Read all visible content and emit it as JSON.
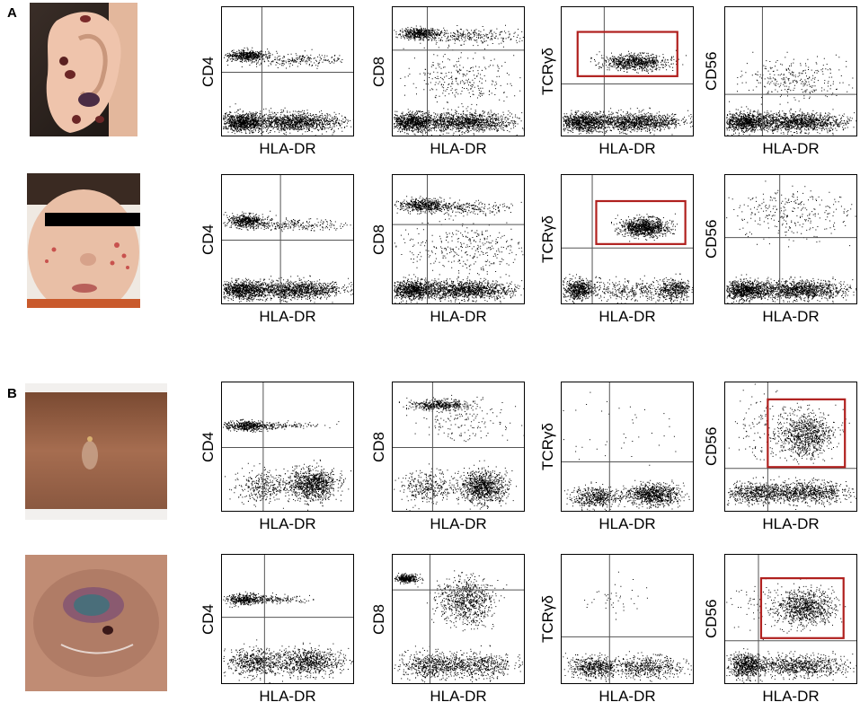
{
  "panel_labels": [
    "A",
    "B"
  ],
  "x_axis_label": "HLA-DR",
  "rows": [
    {
      "y_labels": [
        "CD4",
        "CD8",
        "TCRγδ",
        "CD56"
      ],
      "gated_plot": "TCRγδ",
      "photo": "ear-lesion"
    },
    {
      "y_labels": [
        "CD4",
        "CD8",
        "TCRγδ",
        "CD56"
      ],
      "gated_plot": "TCRγδ",
      "photo": "face-rash"
    },
    {
      "y_labels": [
        "CD4",
        "CD8",
        "TCRγδ",
        "CD56"
      ],
      "gated_plot": "CD56",
      "photo": "arm-blister"
    },
    {
      "y_labels": [
        "CD4",
        "CD8",
        "TCRγδ",
        "CD56"
      ],
      "gated_plot": "CD56",
      "photo": "skin-ulcer"
    }
  ],
  "colors": {
    "gate": "#b0201e",
    "dots": "#000000"
  }
}
